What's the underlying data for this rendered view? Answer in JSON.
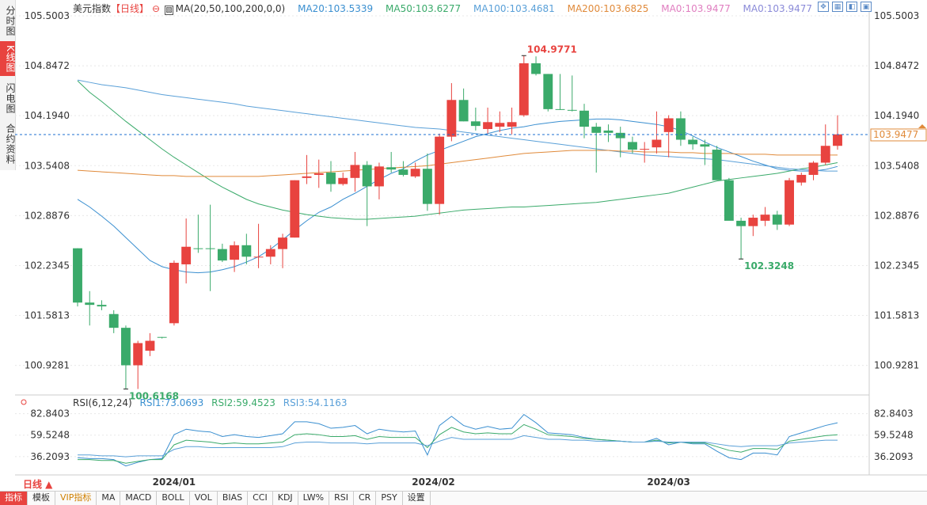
{
  "sidebar": {
    "tabs": [
      {
        "label": "分时图",
        "active": false
      },
      {
        "label": "K线图",
        "active": true
      },
      {
        "label": "闪电图",
        "active": false
      },
      {
        "label": "合约资料",
        "active": false
      }
    ]
  },
  "legend": {
    "name": "美元指数",
    "period": "【日线】",
    "ma_label": "MA(20,50,100,200,0,0)",
    "ma20": "MA20:103.5339",
    "ma50": "MA50:103.6277",
    "ma100": "MA100:103.4681",
    "ma200": "MA200:103.6825",
    "ma0a": "MA0:103.9477",
    "ma0b": "MA0:103.9477"
  },
  "colors": {
    "up": "#e8433f",
    "down": "#3aaa6a",
    "ma20": "#3a8fd0",
    "ma50": "#3aaa6a",
    "ma100": "#5aa0d8",
    "ma200": "#e08a3a",
    "ma0a": "#e07ec0",
    "ma0b": "#8a8ad8",
    "rsi1": "#3a8fd0",
    "rsi2": "#3aaa6a",
    "rsi3": "#5aa0d8",
    "grid": "#e8e8e8",
    "current": "#1e6fd0"
  },
  "annotations": {
    "high": "104.9771",
    "low1": "100.6168",
    "low2": "102.3248",
    "current_price": "103.9477"
  },
  "rsi_legend": {
    "label": "RSI(6,12,24)",
    "rsi1": "RSI1:73.0693",
    "rsi2": "RSI2:59.4523",
    "rsi3": "RSI3:54.1163"
  },
  "period_button": "日线 ▲",
  "toolbar": [
    "指标",
    "模板",
    "VIP指标",
    "MA",
    "MACD",
    "BOLL",
    "VOL",
    "BIAS",
    "CCI",
    "KDJ",
    "LW%",
    "RSI",
    "CR",
    "PSY",
    "设置"
  ],
  "chart_data": [
    {
      "type": "candlestick",
      "title": "美元指数【日线】",
      "y_ticks": [
        "105.5003",
        "104.8472",
        "104.1940",
        "103.5408",
        "102.8876",
        "102.2345",
        "101.5813",
        "100.9281"
      ],
      "ylim": [
        100.5,
        105.5003
      ],
      "x_ticks": [
        "2024/01",
        "2024/02",
        "2024/03"
      ],
      "candles": [
        {
          "o": 102.46,
          "h": 102.46,
          "l": 101.7,
          "c": 101.75
        },
        {
          "o": 101.75,
          "h": 101.9,
          "l": 101.45,
          "c": 101.72
        },
        {
          "o": 101.72,
          "h": 101.78,
          "l": 101.65,
          "c": 101.7
        },
        {
          "o": 101.6,
          "h": 101.65,
          "l": 101.35,
          "c": 101.42
        },
        {
          "o": 101.42,
          "h": 101.45,
          "l": 100.62,
          "c": 100.93
        },
        {
          "o": 100.93,
          "h": 101.25,
          "l": 100.62,
          "c": 101.22
        },
        {
          "o": 101.12,
          "h": 101.35,
          "l": 101.05,
          "c": 101.25
        },
        {
          "o": 101.3,
          "h": 101.3,
          "l": 101.28,
          "c": 101.29
        },
        {
          "o": 101.48,
          "h": 102.3,
          "l": 101.45,
          "c": 102.27
        },
        {
          "o": 102.25,
          "h": 102.85,
          "l": 102.0,
          "c": 102.48
        },
        {
          "o": 102.46,
          "h": 102.9,
          "l": 102.4,
          "c": 102.45
        },
        {
          "o": 102.46,
          "h": 103.03,
          "l": 101.9,
          "c": 102.45
        },
        {
          "o": 102.45,
          "h": 102.52,
          "l": 102.28,
          "c": 102.3
        },
        {
          "o": 102.31,
          "h": 102.55,
          "l": 102.15,
          "c": 102.5
        },
        {
          "o": 102.5,
          "h": 102.65,
          "l": 102.25,
          "c": 102.35
        },
        {
          "o": 102.35,
          "h": 102.78,
          "l": 102.2,
          "c": 102.35
        },
        {
          "o": 102.35,
          "h": 102.5,
          "l": 102.25,
          "c": 102.45
        },
        {
          "o": 102.45,
          "h": 102.65,
          "l": 102.2,
          "c": 102.6
        },
        {
          "o": 102.6,
          "h": 103.35,
          "l": 102.6,
          "c": 103.35
        },
        {
          "o": 103.38,
          "h": 103.68,
          "l": 103.3,
          "c": 103.4
        },
        {
          "o": 103.42,
          "h": 103.62,
          "l": 103.25,
          "c": 103.44
        },
        {
          "o": 103.45,
          "h": 103.6,
          "l": 103.2,
          "c": 103.3
        },
        {
          "o": 103.3,
          "h": 103.45,
          "l": 103.28,
          "c": 103.38
        },
        {
          "o": 103.38,
          "h": 103.72,
          "l": 103.2,
          "c": 103.55
        },
        {
          "o": 103.55,
          "h": 103.6,
          "l": 102.75,
          "c": 103.27
        },
        {
          "o": 103.27,
          "h": 103.58,
          "l": 103.1,
          "c": 103.53
        },
        {
          "o": 103.52,
          "h": 103.72,
          "l": 103.45,
          "c": 103.49
        },
        {
          "o": 103.49,
          "h": 103.6,
          "l": 103.4,
          "c": 103.42
        },
        {
          "o": 103.4,
          "h": 103.58,
          "l": 103.38,
          "c": 103.5
        },
        {
          "o": 103.5,
          "h": 103.7,
          "l": 102.95,
          "c": 103.04
        },
        {
          "o": 103.04,
          "h": 103.96,
          "l": 102.9,
          "c": 103.92
        },
        {
          "o": 103.92,
          "h": 104.62,
          "l": 103.86,
          "c": 104.4
        },
        {
          "o": 104.4,
          "h": 104.55,
          "l": 104.12,
          "c": 104.12
        },
        {
          "o": 104.12,
          "h": 104.3,
          "l": 104.0,
          "c": 104.06
        },
        {
          "o": 104.02,
          "h": 104.3,
          "l": 103.96,
          "c": 104.11
        },
        {
          "o": 104.05,
          "h": 104.25,
          "l": 103.98,
          "c": 104.1
        },
        {
          "o": 104.05,
          "h": 104.3,
          "l": 103.95,
          "c": 104.11
        },
        {
          "o": 104.2,
          "h": 104.98,
          "l": 104.18,
          "c": 104.88
        },
        {
          "o": 104.88,
          "h": 104.97,
          "l": 104.72,
          "c": 104.74
        },
        {
          "o": 104.74,
          "h": 104.74,
          "l": 104.25,
          "c": 104.28
        },
        {
          "o": 104.28,
          "h": 104.74,
          "l": 104.27,
          "c": 104.27
        },
        {
          "o": 104.27,
          "h": 104.72,
          "l": 104.25,
          "c": 104.26
        },
        {
          "o": 104.26,
          "h": 104.35,
          "l": 103.9,
          "c": 104.05
        },
        {
          "o": 104.05,
          "h": 104.1,
          "l": 103.45,
          "c": 103.97
        },
        {
          "o": 104.0,
          "h": 104.08,
          "l": 103.85,
          "c": 103.97
        },
        {
          "o": 103.97,
          "h": 104.05,
          "l": 103.65,
          "c": 103.9
        },
        {
          "o": 103.85,
          "h": 103.92,
          "l": 103.7,
          "c": 103.75
        },
        {
          "o": 103.75,
          "h": 103.85,
          "l": 103.58,
          "c": 103.76
        },
        {
          "o": 103.78,
          "h": 104.25,
          "l": 103.7,
          "c": 103.88
        },
        {
          "o": 103.98,
          "h": 104.2,
          "l": 103.65,
          "c": 104.16
        },
        {
          "o": 104.16,
          "h": 104.25,
          "l": 103.8,
          "c": 103.88
        },
        {
          "o": 103.88,
          "h": 103.92,
          "l": 103.75,
          "c": 103.82
        },
        {
          "o": 103.82,
          "h": 103.88,
          "l": 103.55,
          "c": 103.79
        },
        {
          "o": 103.75,
          "h": 103.8,
          "l": 103.38,
          "c": 103.35
        },
        {
          "o": 103.35,
          "h": 103.38,
          "l": 102.85,
          "c": 102.82
        },
        {
          "o": 102.82,
          "h": 102.86,
          "l": 102.32,
          "c": 102.75
        },
        {
          "o": 102.75,
          "h": 102.9,
          "l": 102.62,
          "c": 102.86
        },
        {
          "o": 102.82,
          "h": 103.0,
          "l": 102.75,
          "c": 102.9
        },
        {
          "o": 102.9,
          "h": 102.95,
          "l": 102.7,
          "c": 102.77
        },
        {
          "o": 102.77,
          "h": 103.38,
          "l": 102.75,
          "c": 103.35
        },
        {
          "o": 103.32,
          "h": 103.45,
          "l": 103.28,
          "c": 103.42
        },
        {
          "o": 103.42,
          "h": 103.6,
          "l": 103.35,
          "c": 103.58
        },
        {
          "o": 103.58,
          "h": 104.08,
          "l": 103.55,
          "c": 103.8
        },
        {
          "o": 103.8,
          "h": 104.2,
          "l": 103.75,
          "c": 103.95
        }
      ],
      "ma_lines": [
        {
          "name": "MA20",
          "color_key": "ma20",
          "values": [
            103.1,
            103.0,
            102.88,
            102.75,
            102.6,
            102.45,
            102.3,
            102.22,
            102.18,
            102.15,
            102.14,
            102.15,
            102.18,
            102.22,
            102.28,
            102.35,
            102.45,
            102.57,
            102.7,
            102.82,
            102.93,
            103.0,
            103.1,
            103.18,
            103.27,
            103.36,
            103.44,
            103.5,
            103.6,
            103.68,
            103.74,
            103.8,
            103.86,
            103.92,
            103.96,
            104.0,
            104.03,
            104.05,
            104.08,
            104.1,
            104.12,
            104.13,
            104.14,
            104.15,
            104.15,
            104.14,
            104.12,
            104.1,
            104.08,
            104.05,
            104.0,
            103.93,
            103.85,
            103.78,
            103.72,
            103.66,
            103.6,
            103.55,
            103.5,
            103.48,
            103.47,
            103.47,
            103.49,
            103.53
          ]
        },
        {
          "name": "MA50",
          "color_key": "ma50",
          "values": [
            104.65,
            104.5,
            104.38,
            104.25,
            104.12,
            104.0,
            103.88,
            103.76,
            103.65,
            103.55,
            103.45,
            103.35,
            103.26,
            103.18,
            103.1,
            103.04,
            103.0,
            102.96,
            102.93,
            102.9,
            102.88,
            102.86,
            102.85,
            102.84,
            102.84,
            102.85,
            102.86,
            102.87,
            102.88,
            102.9,
            102.92,
            102.94,
            102.96,
            102.97,
            102.98,
            102.99,
            103.0,
            103.0,
            103.01,
            103.02,
            103.03,
            103.04,
            103.05,
            103.06,
            103.08,
            103.1,
            103.12,
            103.14,
            103.16,
            103.18,
            103.22,
            103.26,
            103.3,
            103.34,
            103.36,
            103.38,
            103.4,
            103.42,
            103.44,
            103.47,
            103.5,
            103.52,
            103.55,
            103.58
          ]
        },
        {
          "name": "MA100",
          "color_key": "ma100",
          "values": [
            104.66,
            104.63,
            104.6,
            104.58,
            104.56,
            104.53,
            104.5,
            104.47,
            104.45,
            104.43,
            104.41,
            104.39,
            104.37,
            104.35,
            104.32,
            104.3,
            104.28,
            104.26,
            104.24,
            104.22,
            104.2,
            104.18,
            104.16,
            104.14,
            104.12,
            104.1,
            104.08,
            104.06,
            104.04,
            104.03,
            104.02,
            104.0,
            103.98,
            103.96,
            103.94,
            103.92,
            103.9,
            103.88,
            103.86,
            103.84,
            103.82,
            103.8,
            103.78,
            103.76,
            103.74,
            103.72,
            103.7,
            103.68,
            103.67,
            103.66,
            103.65,
            103.64,
            103.63,
            103.62,
            103.6,
            103.58,
            103.56,
            103.54,
            103.52,
            103.5,
            103.49,
            103.48,
            103.47,
            103.47
          ]
        },
        {
          "name": "MA200",
          "color_key": "ma200",
          "values": [
            103.48,
            103.47,
            103.46,
            103.45,
            103.44,
            103.43,
            103.42,
            103.41,
            103.41,
            103.4,
            103.4,
            103.4,
            103.4,
            103.4,
            103.4,
            103.4,
            103.41,
            103.42,
            103.43,
            103.44,
            103.45,
            103.46,
            103.47,
            103.48,
            103.49,
            103.5,
            103.51,
            103.52,
            103.53,
            103.54,
            103.56,
            103.58,
            103.6,
            103.62,
            103.64,
            103.66,
            103.68,
            103.7,
            103.71,
            103.72,
            103.73,
            103.74,
            103.74,
            103.74,
            103.74,
            103.73,
            103.73,
            103.72,
            103.72,
            103.72,
            103.71,
            103.71,
            103.7,
            103.7,
            103.7,
            103.69,
            103.69,
            103.69,
            103.68,
            103.68,
            103.68,
            103.68,
            103.68,
            103.68
          ]
        }
      ]
    },
    {
      "type": "line",
      "title": "RSI(6,12,24)",
      "y_ticks": [
        "82.8403",
        "59.5248",
        "36.2093"
      ],
      "ylim": [
        18,
        92
      ],
      "series": [
        {
          "name": "RSI1",
          "color_key": "rsi1",
          "values": [
            35,
            34,
            34,
            33,
            26,
            30,
            33,
            34,
            60,
            66,
            64,
            63,
            58,
            60,
            58,
            57,
            59,
            61,
            74,
            74,
            72,
            67,
            68,
            70,
            61,
            66,
            64,
            63,
            64,
            38,
            70,
            80,
            70,
            66,
            69,
            66,
            67,
            82,
            73,
            62,
            61,
            60,
            57,
            55,
            54,
            53,
            52,
            52,
            56,
            49,
            52,
            50,
            50,
            42,
            35,
            33,
            40,
            40,
            38,
            58,
            62,
            66,
            70,
            73
          ]
        },
        {
          "name": "RSI2",
          "color_key": "rsi2",
          "values": [
            33,
            33,
            32,
            32,
            29,
            31,
            33,
            33,
            49,
            54,
            53,
            52,
            50,
            51,
            50,
            50,
            51,
            52,
            60,
            61,
            60,
            58,
            58,
            59,
            55,
            58,
            57,
            57,
            57,
            46,
            60,
            68,
            63,
            61,
            62,
            61,
            61,
            71,
            66,
            60,
            59,
            58,
            56,
            55,
            54,
            53,
            52,
            52,
            54,
            51,
            52,
            51,
            51,
            47,
            43,
            41,
            45,
            45,
            44,
            53,
            55,
            57,
            59,
            60
          ]
        },
        {
          "name": "RSI3",
          "color_key": "rsi3",
          "values": [
            38,
            38,
            37,
            37,
            36,
            37,
            37,
            37,
            44,
            47,
            47,
            46,
            46,
            46,
            46,
            46,
            46,
            47,
            51,
            52,
            52,
            51,
            51,
            51,
            50,
            51,
            51,
            51,
            51,
            48,
            53,
            57,
            55,
            55,
            55,
            55,
            55,
            59,
            57,
            55,
            55,
            54,
            54,
            53,
            53,
            53,
            52,
            52,
            53,
            52,
            52,
            52,
            52,
            50,
            48,
            47,
            48,
            48,
            48,
            51,
            52,
            53,
            54,
            54
          ]
        }
      ]
    }
  ]
}
